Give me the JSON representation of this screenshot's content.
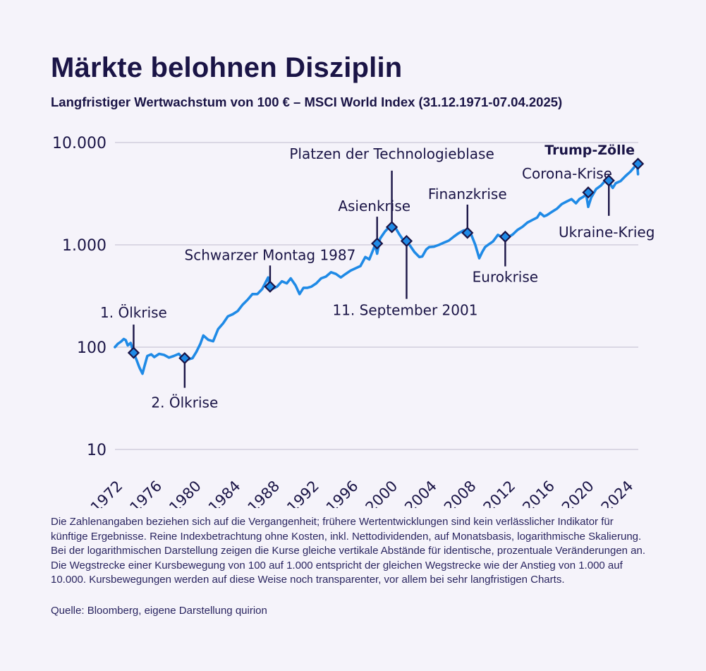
{
  "header": {
    "title": "Märkte belohnen Disziplin",
    "subtitle": "Langfristiger Wertwachstum von 100 € – MSCI World Index (31.12.1971-07.04.2025)"
  },
  "footer": {
    "note": "Die Zahlenangaben beziehen sich auf die Vergangenheit; frühere Wertentwicklungen sind kein verlässlicher Indikator für künftige Ergebnisse. Reine Indexbetrachtung ohne Kosten, inkl. Nettodividenden, auf Monatsbasis, logarithmische Skalierung. Bei der logarithmischen Darstellung zeigen die Kurse gleiche vertikale Abstände für identische, prozentuale Veränderungen an. Die Wegstrecke einer Kursbewegung von 100 auf 1.000 entspricht der gleichen Wegstrecke wie der Anstieg von 1.000 auf 10.000. Kursbewegungen werden auf diese Weise noch transparenter, vor allem bei sehr langfristigen Charts.",
    "source": "Quelle: Bloomberg, eigene Darstellung quirion"
  },
  "colors": {
    "line": "#1f8ae6",
    "grid": "#c9c6d6",
    "marker_fill": "#1f8ae6",
    "marker_stroke": "#1a1446",
    "text": "#1a1446"
  },
  "chart_data": {
    "type": "line",
    "title": "Märkte belohnen Disziplin",
    "scale": "log",
    "ylim": [
      10,
      10000
    ],
    "yticks": [
      10,
      100,
      1000,
      10000
    ],
    "ytick_labels": [
      "10",
      "100",
      "1.000",
      "10.000"
    ],
    "xlim": [
      1972,
      2025.3
    ],
    "xticks": [
      1972,
      1976,
      1980,
      1984,
      1988,
      1992,
      1996,
      2000,
      2004,
      2008,
      2012,
      2016,
      2020,
      2024
    ],
    "xtick_labels": [
      "1972",
      "1976",
      "1980",
      "1984",
      "1988",
      "1992",
      "1996",
      "2000",
      "2004",
      "2008",
      "2012",
      "2016",
      "2020",
      "2024"
    ],
    "grid": true,
    "series": [
      {
        "name": "MSCI World Index (100 € Startwert)",
        "x": [
          1971.99,
          1972.3,
          1972.6,
          1972.9,
          1973.1,
          1973.3,
          1973.6,
          1973.9,
          1974.2,
          1974.5,
          1974.8,
          1975.0,
          1975.3,
          1975.7,
          1976.0,
          1976.5,
          1977.0,
          1977.5,
          1978.0,
          1978.5,
          1978.9,
          1979.1,
          1979.5,
          1979.9,
          1980.3,
          1980.7,
          1981.0,
          1981.5,
          1982.0,
          1982.5,
          1983.0,
          1983.5,
          1984.0,
          1984.5,
          1985.0,
          1985.5,
          1986.0,
          1986.5,
          1987.0,
          1987.6,
          1987.8,
          1988.0,
          1988.5,
          1989.0,
          1989.5,
          1989.9,
          1990.4,
          1990.8,
          1991.2,
          1991.6,
          1992.0,
          1992.5,
          1993.0,
          1993.5,
          1994.0,
          1994.5,
          1995.0,
          1995.5,
          1996.0,
          1996.5,
          1997.0,
          1997.5,
          1997.9,
          1998.5,
          1998.7,
          1999.0,
          1999.5,
          2000.0,
          2000.2,
          2000.6,
          2001.0,
          2001.4,
          2001.7,
          2002.0,
          2002.5,
          2003.0,
          2003.3,
          2003.7,
          2004.0,
          2004.5,
          2005.0,
          2005.5,
          2006.0,
          2006.5,
          2007.0,
          2007.5,
          2007.9,
          2008.3,
          2008.7,
          2009.1,
          2009.4,
          2009.7,
          2010.0,
          2010.5,
          2011.0,
          2011.5,
          2011.75,
          2012.0,
          2012.5,
          2013.0,
          2013.5,
          2014.0,
          2014.5,
          2015.0,
          2015.3,
          2015.7,
          2016.0,
          2016.5,
          2017.0,
          2017.5,
          2018.0,
          2018.5,
          2018.95,
          2019.3,
          2019.7,
          2020.0,
          2020.2,
          2020.5,
          2021.0,
          2021.5,
          2021.9,
          2022.3,
          2022.7,
          2023.0,
          2023.5,
          2024.0,
          2024.5,
          2025.0,
          2025.2,
          2025.27
        ],
        "values": [
          100,
          108,
          113,
          120,
          117,
          104,
          110,
          88,
          75,
          63,
          55,
          65,
          82,
          85,
          80,
          86,
          84,
          79,
          82,
          86,
          78,
          82,
          76,
          78,
          90,
          108,
          130,
          118,
          114,
          150,
          170,
          200,
          210,
          225,
          260,
          290,
          330,
          330,
          370,
          480,
          380,
          370,
          390,
          440,
          420,
          470,
          400,
          330,
          380,
          380,
          390,
          420,
          470,
          490,
          540,
          520,
          480,
          520,
          560,
          590,
          620,
          760,
          720,
          1000,
          820,
          1150,
          1350,
          1520,
          1550,
          1450,
          1250,
          1100,
          1050,
          1000,
          850,
          760,
          770,
          900,
          950,
          960,
          1000,
          1050,
          1100,
          1200,
          1300,
          1380,
          1400,
          1250,
          1000,
          740,
          850,
          950,
          1000,
          1080,
          1250,
          1180,
          1100,
          1180,
          1260,
          1400,
          1500,
          1650,
          1750,
          1850,
          2050,
          1900,
          1950,
          2100,
          2250,
          2500,
          2650,
          2800,
          2550,
          2800,
          2950,
          3100,
          2350,
          2900,
          3500,
          3800,
          4200,
          4100,
          3600,
          4000,
          4200,
          4700,
          5200,
          5900,
          6000,
          4900
        ]
      }
    ],
    "events": [
      {
        "label": "1. Ölkrise",
        "x": 1973.9,
        "value": 88,
        "bold": false
      },
      {
        "label": "2. Ölkrise",
        "x": 1979.1,
        "value": 78,
        "bold": false
      },
      {
        "label": "Schwarzer Montag 1987",
        "x": 1987.8,
        "value": 390,
        "bold": false
      },
      {
        "label": "Asienkrise",
        "x": 1998.7,
        "value": 1030,
        "bold": false
      },
      {
        "label": "Platzen der Technologieblase",
        "x": 2000.2,
        "value": 1490,
        "bold": false
      },
      {
        "label": "11. September 2001",
        "x": 2001.7,
        "value": 1090,
        "bold": false
      },
      {
        "label": "Finanzkrise",
        "x": 2007.9,
        "value": 1310,
        "bold": false
      },
      {
        "label": "Eurokrise",
        "x": 2011.75,
        "value": 1200,
        "bold": false
      },
      {
        "label": "Corona-Krise",
        "x": 2020.2,
        "value": 3250,
        "bold": false
      },
      {
        "label": "Ukraine-Krieg",
        "x": 2022.3,
        "value": 4250,
        "bold": false
      },
      {
        "label": "Trump-Zölle",
        "x": 2025.27,
        "value": 6200,
        "bold": true
      }
    ]
  }
}
